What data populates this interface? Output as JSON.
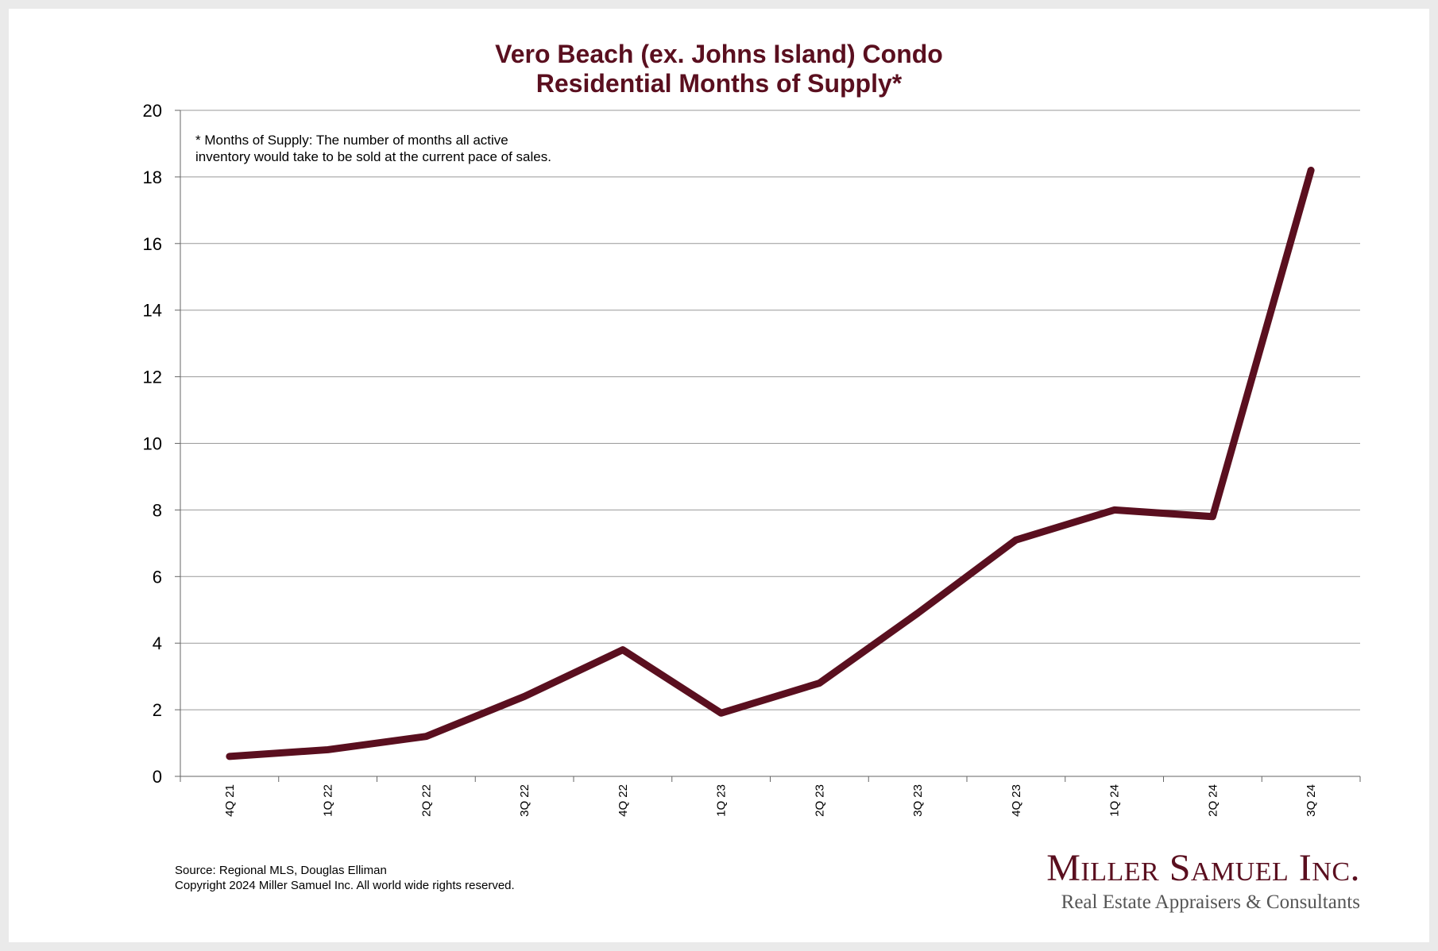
{
  "chart_data": {
    "type": "line",
    "title": [
      "Vero Beach (ex. Johns Island) Condo",
      "Residential Months of Supply*"
    ],
    "footnote": [
      "* Months of Supply: The number of months all active",
      "inventory would take to be sold at the current pace of sales."
    ],
    "categories": [
      "4Q 21",
      "1Q 22",
      "2Q 22",
      "3Q 22",
      "4Q 22",
      "1Q 23",
      "2Q 23",
      "3Q 23",
      "4Q 23",
      "1Q 24",
      "2Q 24",
      "3Q 24"
    ],
    "series": [
      {
        "name": "Months of Supply",
        "values": [
          0.6,
          0.8,
          1.2,
          2.4,
          3.8,
          1.9,
          2.8,
          4.9,
          7.1,
          8.0,
          7.8,
          18.2
        ],
        "color": "#5a0f1f"
      }
    ],
    "ylim": [
      0,
      20
    ],
    "yticks": [
      0,
      2,
      4,
      6,
      8,
      10,
      12,
      14,
      16,
      18,
      20
    ],
    "xlabel": "",
    "ylabel": "",
    "grid": true
  },
  "source": {
    "line1": "Source: Regional MLS, Douglas Elliman",
    "line2": "Copyright 2024 Miller Samuel Inc.  All world wide rights reserved."
  },
  "logo": {
    "name": "Miller Samuel Inc.",
    "tagline": "Real Estate Appraisers & Consultants"
  },
  "colors": {
    "accent": "#5a0f1f",
    "grid": "#999999"
  }
}
